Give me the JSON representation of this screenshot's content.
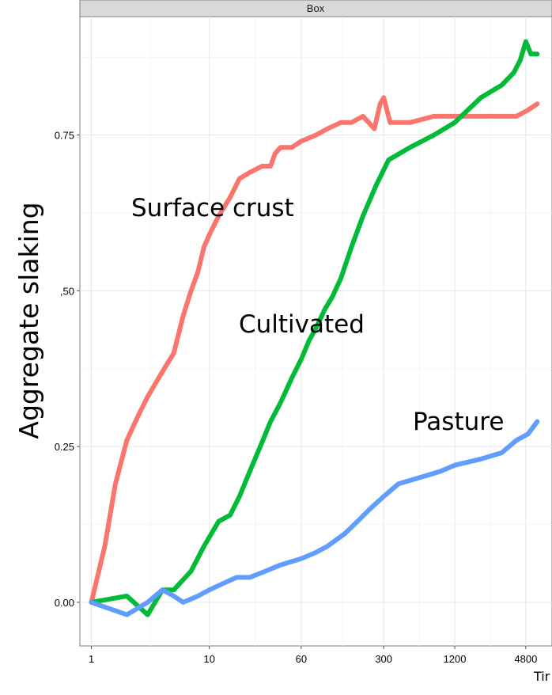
{
  "chart_data": {
    "type": "line",
    "facet": "Box",
    "ylabel": "Aggregate slaking",
    "xlabel": "Tir",
    "x_scale": "log",
    "x_ticks": [
      1,
      10,
      60,
      300,
      1200,
      4800
    ],
    "x_tick_labels": [
      "1",
      "10",
      "60",
      "300",
      "1200",
      "4800"
    ],
    "y_ticks": [
      0,
      0.25,
      0.5,
      0.75
    ],
    "y_tick_labels": [
      "0.00",
      "0.25",
      ",50",
      "0.75"
    ],
    "xlim": [
      0.8,
      8000
    ],
    "ylim": [
      -0.07,
      0.94
    ],
    "grid": true,
    "series": [
      {
        "name": "Surface crust",
        "color": "#F8766D",
        "points": [
          [
            1,
            0
          ],
          [
            1.3,
            0.09
          ],
          [
            1.6,
            0.19
          ],
          [
            2,
            0.26
          ],
          [
            2.5,
            0.3
          ],
          [
            3,
            0.33
          ],
          [
            4,
            0.37
          ],
          [
            5,
            0.4
          ],
          [
            6,
            0.46
          ],
          [
            7,
            0.5
          ],
          [
            8,
            0.53
          ],
          [
            9,
            0.57
          ],
          [
            10,
            0.59
          ],
          [
            12,
            0.62
          ],
          [
            15,
            0.65
          ],
          [
            18,
            0.68
          ],
          [
            22,
            0.69
          ],
          [
            28,
            0.7
          ],
          [
            33,
            0.7
          ],
          [
            36,
            0.72
          ],
          [
            40,
            0.73
          ],
          [
            50,
            0.73
          ],
          [
            60,
            0.74
          ],
          [
            80,
            0.75
          ],
          [
            100,
            0.76
          ],
          [
            130,
            0.77
          ],
          [
            160,
            0.77
          ],
          [
            200,
            0.78
          ],
          [
            250,
            0.76
          ],
          [
            280,
            0.8
          ],
          [
            300,
            0.81
          ],
          [
            340,
            0.77
          ],
          [
            500,
            0.77
          ],
          [
            800,
            0.78
          ],
          [
            1200,
            0.78
          ],
          [
            2000,
            0.78
          ],
          [
            3000,
            0.78
          ],
          [
            4000,
            0.78
          ],
          [
            5000,
            0.79
          ],
          [
            6000,
            0.8
          ]
        ]
      },
      {
        "name": "Cultivated",
        "color": "#00BA38",
        "points": [
          [
            1,
            0
          ],
          [
            2,
            0.01
          ],
          [
            3,
            -0.02
          ],
          [
            4,
            0.02
          ],
          [
            5,
            0.02
          ],
          [
            7,
            0.05
          ],
          [
            9,
            0.09
          ],
          [
            12,
            0.13
          ],
          [
            15,
            0.14
          ],
          [
            18,
            0.17
          ],
          [
            22,
            0.21
          ],
          [
            27,
            0.25
          ],
          [
            33,
            0.29
          ],
          [
            40,
            0.32
          ],
          [
            50,
            0.36
          ],
          [
            60,
            0.39
          ],
          [
            70,
            0.42
          ],
          [
            80,
            0.44
          ],
          [
            95,
            0.47
          ],
          [
            110,
            0.49
          ],
          [
            130,
            0.52
          ],
          [
            160,
            0.57
          ],
          [
            200,
            0.62
          ],
          [
            260,
            0.67
          ],
          [
            330,
            0.71
          ],
          [
            500,
            0.73
          ],
          [
            800,
            0.75
          ],
          [
            1200,
            0.77
          ],
          [
            2000,
            0.81
          ],
          [
            3000,
            0.83
          ],
          [
            3800,
            0.85
          ],
          [
            4300,
            0.87
          ],
          [
            4800,
            0.9
          ],
          [
            5300,
            0.88
          ],
          [
            6000,
            0.88
          ]
        ]
      },
      {
        "name": "Pasture",
        "color": "#619CFF",
        "points": [
          [
            1,
            0
          ],
          [
            2,
            -0.02
          ],
          [
            3,
            0.0
          ],
          [
            4,
            0.02
          ],
          [
            5,
            0.01
          ],
          [
            6,
            0.0
          ],
          [
            8,
            0.01
          ],
          [
            10,
            0.02
          ],
          [
            13,
            0.03
          ],
          [
            17,
            0.04
          ],
          [
            22,
            0.04
          ],
          [
            30,
            0.05
          ],
          [
            40,
            0.06
          ],
          [
            60,
            0.07
          ],
          [
            80,
            0.08
          ],
          [
            100,
            0.09
          ],
          [
            140,
            0.11
          ],
          [
            180,
            0.13
          ],
          [
            230,
            0.15
          ],
          [
            300,
            0.17
          ],
          [
            400,
            0.19
          ],
          [
            600,
            0.2
          ],
          [
            900,
            0.21
          ],
          [
            1200,
            0.22
          ],
          [
            2000,
            0.23
          ],
          [
            3000,
            0.24
          ],
          [
            4000,
            0.26
          ],
          [
            5000,
            0.27
          ],
          [
            6000,
            0.29
          ]
        ]
      }
    ],
    "annotations": [
      {
        "text": "Surface crust"
      },
      {
        "text": "Cultivated"
      },
      {
        "text": "Pasture"
      }
    ]
  }
}
